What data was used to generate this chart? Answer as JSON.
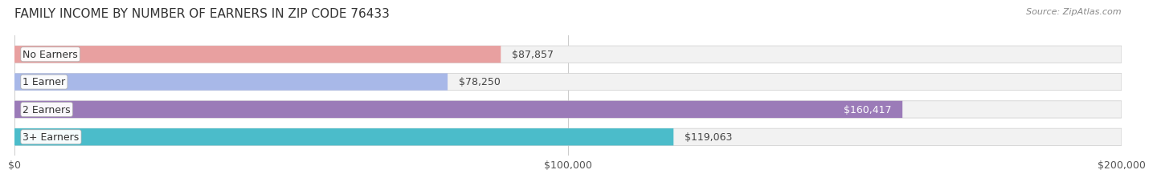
{
  "title": "FAMILY INCOME BY NUMBER OF EARNERS IN ZIP CODE 76433",
  "source": "Source: ZipAtlas.com",
  "categories": [
    "No Earners",
    "1 Earner",
    "2 Earners",
    "3+ Earners"
  ],
  "values": [
    87857,
    78250,
    160417,
    119063
  ],
  "bar_colors": [
    "#E8A0A0",
    "#A8B8E8",
    "#9B7BB8",
    "#4BBCCA"
  ],
  "bar_bg_color": "#F0F0F0",
  "label_bg_color": "#FFFFFF",
  "xlim": [
    0,
    200000
  ],
  "xticks": [
    0,
    100000,
    200000
  ],
  "xtick_labels": [
    "$0",
    "$100,000",
    "$200,000"
  ],
  "value_label_color_inside": "#FFFFFF",
  "value_label_color_outside": "#555555",
  "title_fontsize": 11,
  "source_fontsize": 8,
  "tick_fontsize": 9,
  "bar_label_fontsize": 9,
  "value_fontsize": 9,
  "background_color": "#FFFFFF",
  "bar_bg_alpha": 1.0
}
